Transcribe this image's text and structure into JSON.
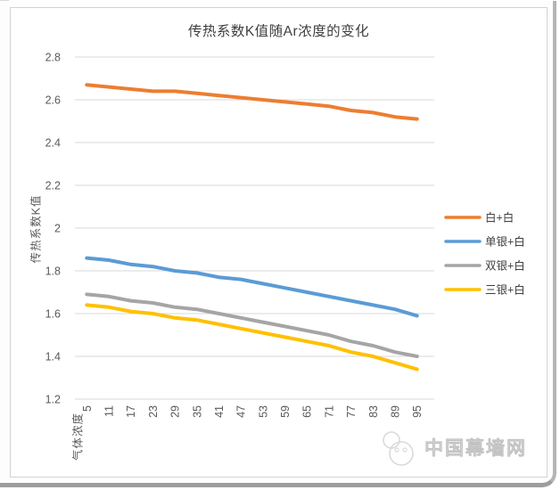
{
  "chart_data": {
    "type": "line",
    "title": "传热系数K值随Ar浓度的变化",
    "xlabel": "气体浓度",
    "ylabel": "传热系数K值",
    "categories": [
      "5",
      "11",
      "17",
      "23",
      "29",
      "35",
      "41",
      "47",
      "53",
      "59",
      "65",
      "71",
      "77",
      "83",
      "89",
      "95"
    ],
    "series": [
      {
        "name": "白+白",
        "color": "#ED7D31",
        "values": [
          2.67,
          2.66,
          2.65,
          2.64,
          2.64,
          2.63,
          2.62,
          2.61,
          2.6,
          2.59,
          2.58,
          2.57,
          2.55,
          2.54,
          2.52,
          2.51
        ]
      },
      {
        "name": "单银+白",
        "color": "#5B9BD5",
        "values": [
          1.86,
          1.85,
          1.83,
          1.82,
          1.8,
          1.79,
          1.77,
          1.76,
          1.74,
          1.72,
          1.7,
          1.68,
          1.66,
          1.64,
          1.62,
          1.59
        ]
      },
      {
        "name": "双银+白",
        "color": "#A5A5A5",
        "values": [
          1.69,
          1.68,
          1.66,
          1.65,
          1.63,
          1.62,
          1.6,
          1.58,
          1.56,
          1.54,
          1.52,
          1.5,
          1.47,
          1.45,
          1.42,
          1.4
        ]
      },
      {
        "name": "三银+白",
        "color": "#FFC000",
        "values": [
          1.64,
          1.63,
          1.61,
          1.6,
          1.58,
          1.57,
          1.55,
          1.53,
          1.51,
          1.49,
          1.47,
          1.45,
          1.42,
          1.4,
          1.37,
          1.34
        ]
      }
    ],
    "yticks": [
      "2.8",
      "2.6",
      "2.4",
      "2.2",
      "2",
      "1.8",
      "1.6",
      "1.4",
      "1.2"
    ],
    "ylim": [
      1.2,
      2.8
    ],
    "grid": "horizontal",
    "gridline_color": "#D9D9D9",
    "tick_label_color": "#595959",
    "legend_position": "right",
    "legend_text_color": "#404040"
  },
  "watermark": {
    "text": "中国幕墙网"
  }
}
